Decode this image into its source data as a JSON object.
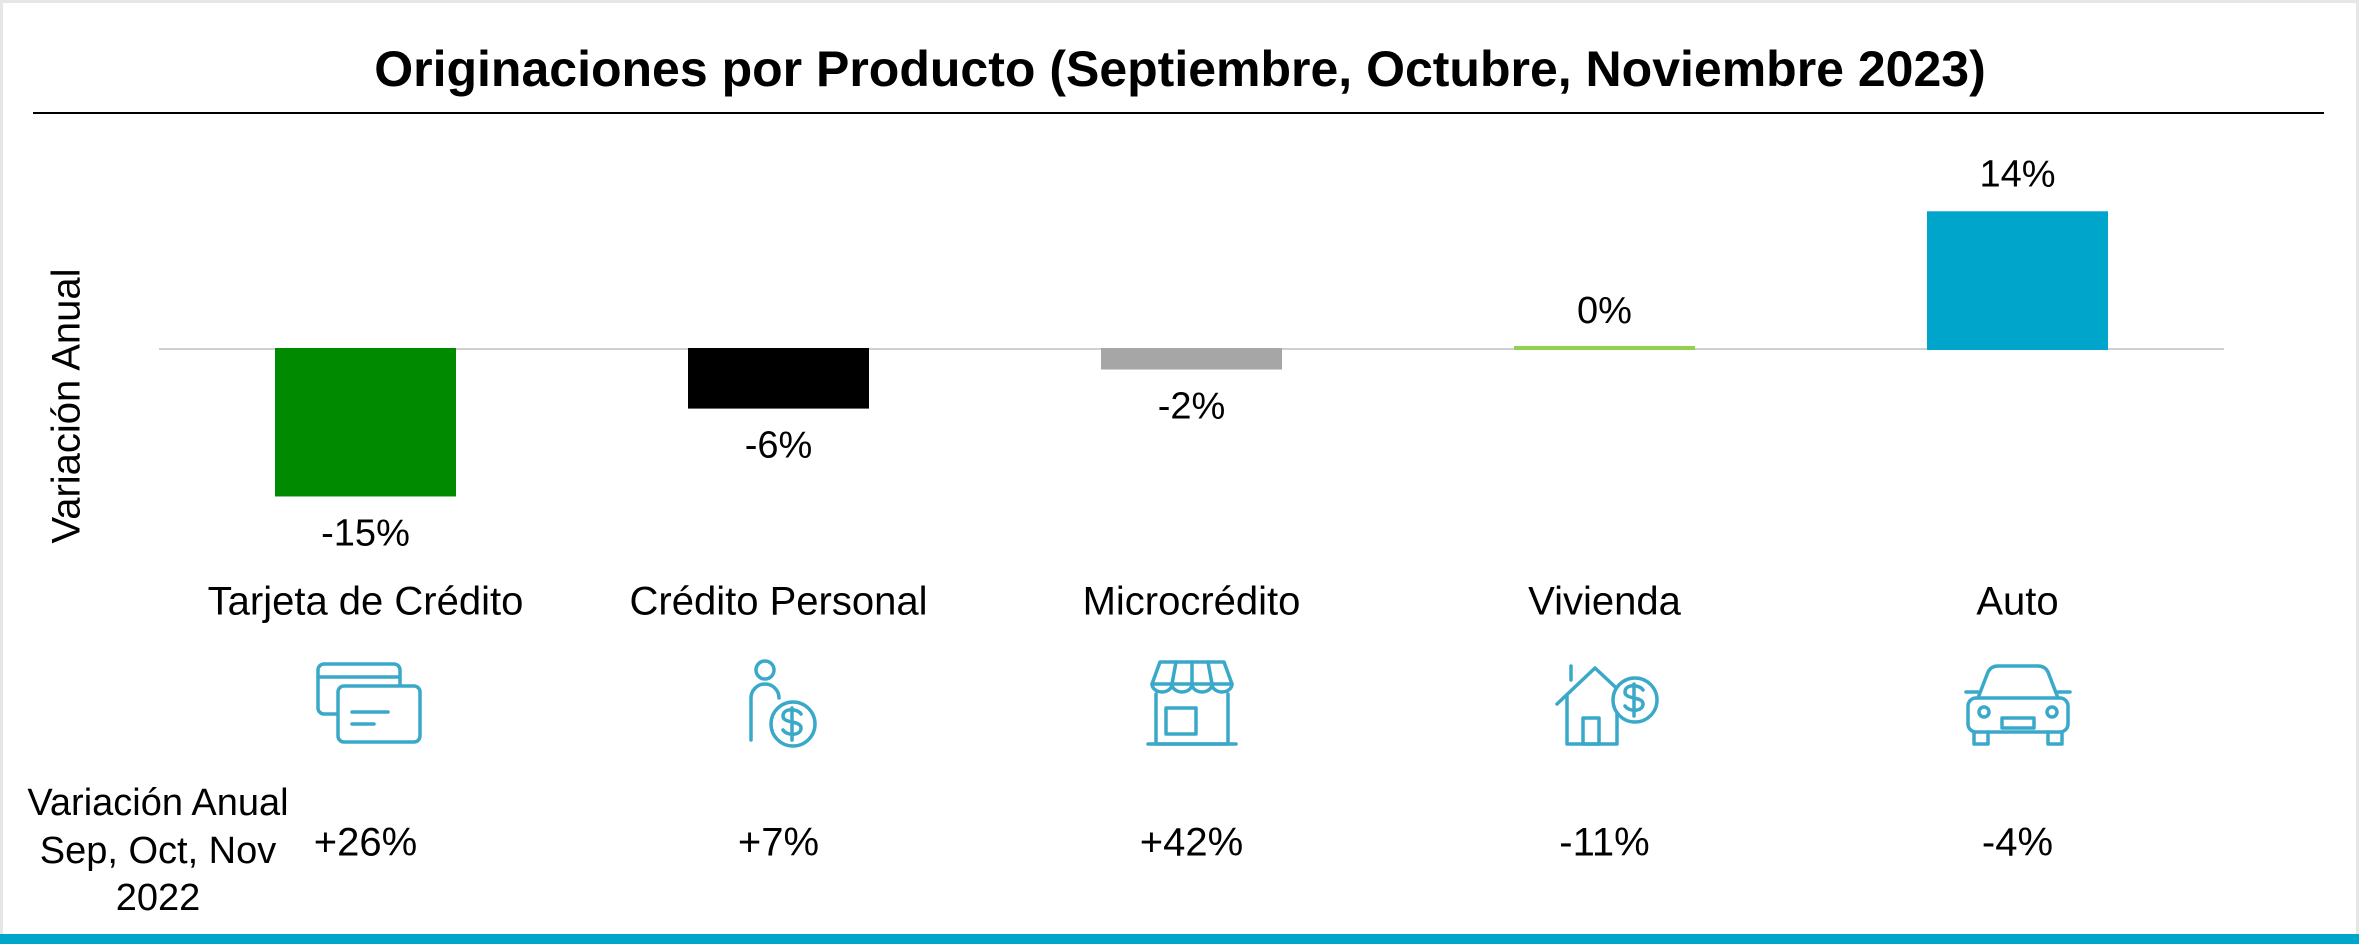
{
  "chart_data": {
    "type": "bar",
    "title": "Originaciones por Producto (Septiembre, Octubre, Noviembre 2023)",
    "y_label": "Variación Anual",
    "categories": [
      "Tarjeta de Crédito",
      "Crédito Personal",
      "Microcrédito",
      "Vivienda",
      "Auto"
    ],
    "values": [
      -15,
      -6,
      -2,
      0,
      14
    ],
    "value_labels": [
      "-15%",
      "-6%",
      "-2%",
      "0%",
      "14%"
    ],
    "colors": [
      "#008a00",
      "#000000",
      "#a6a6a6",
      "#92d050",
      "#00a5cc"
    ],
    "ylim": [
      -17,
      17
    ],
    "prior_year": {
      "label": [
        "Variación Anual",
        "Sep, Oct, Nov",
        "2022"
      ],
      "values": [
        "+26%",
        "+7%",
        "+42%",
        "-11%",
        "-4%"
      ]
    }
  }
}
